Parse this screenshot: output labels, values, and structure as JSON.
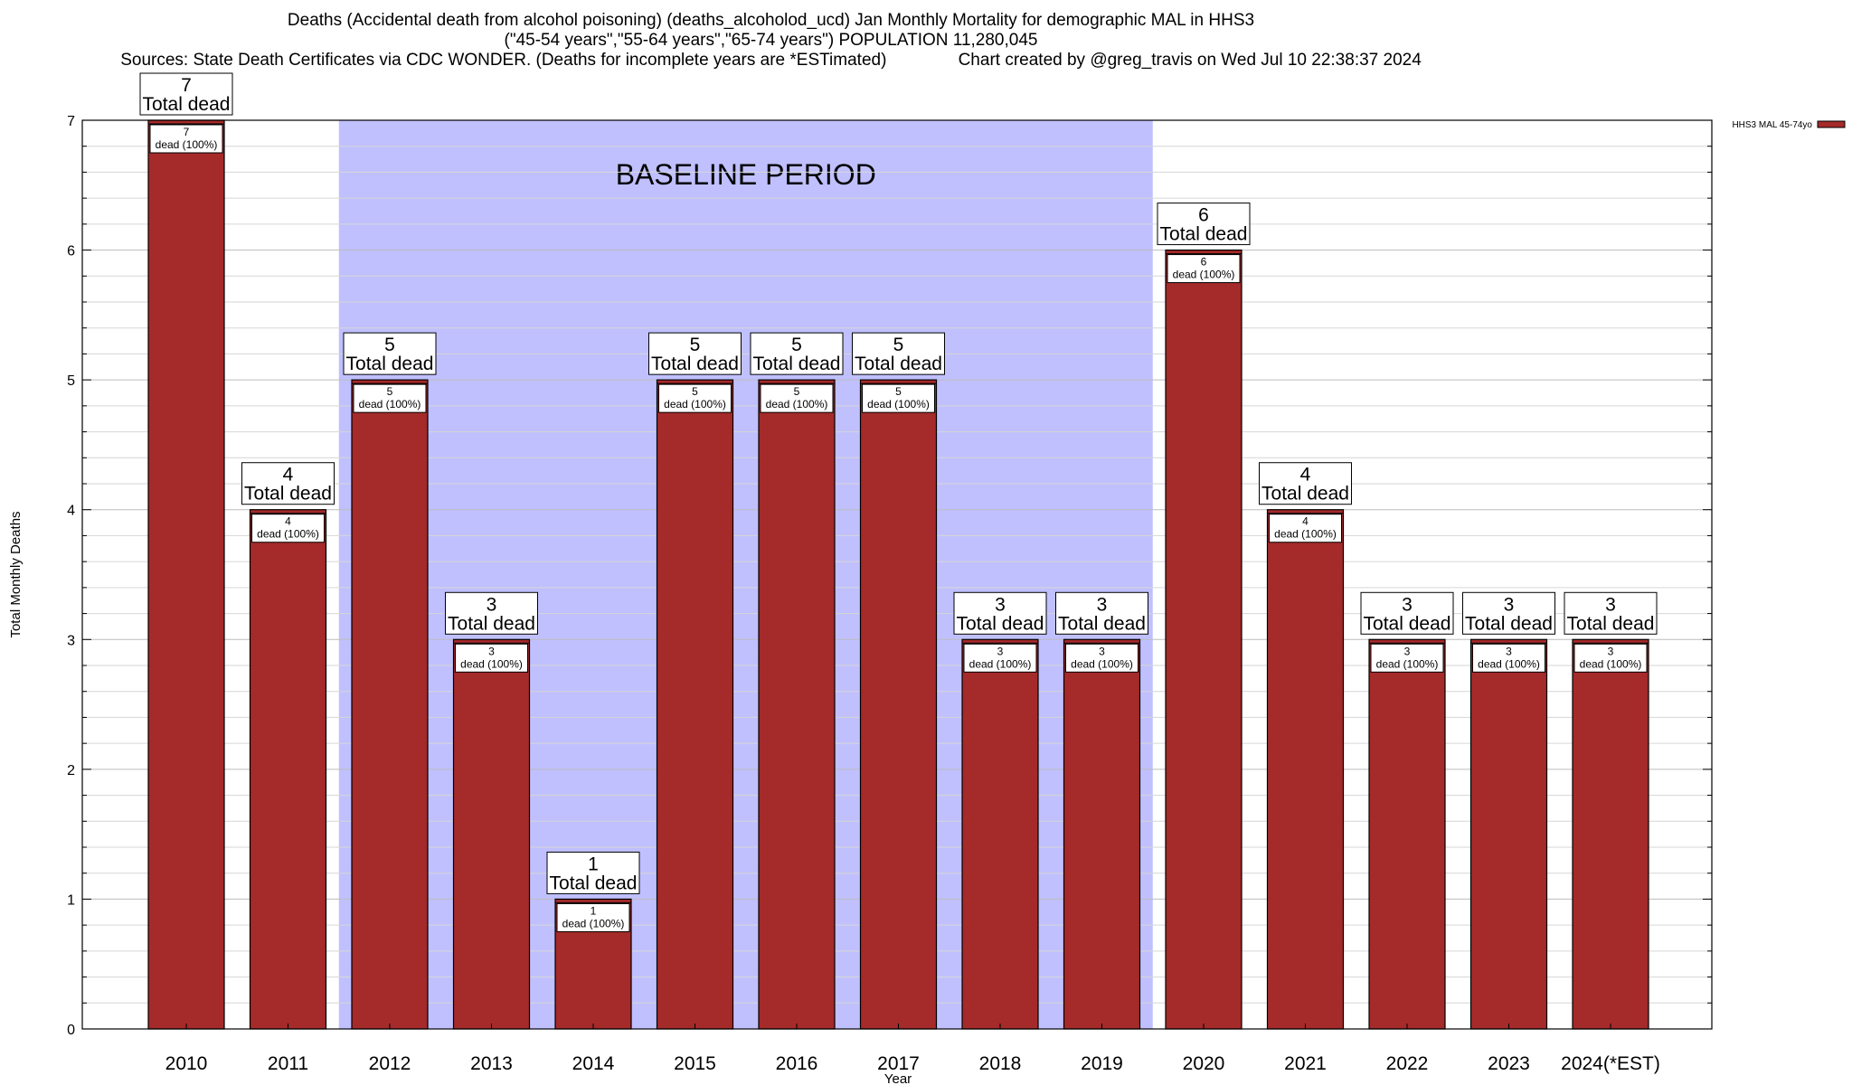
{
  "chart_data": {
    "type": "bar",
    "title": [
      "Deaths (Accidental death from alcohol poisoning) (deaths_alcoholod_ucd) Jan Monthly Mortality for demographic MAL in HHS3",
      "(\"45-54 years\",\"55-64 years\",\"65-74 years\") POPULATION 11,280,045",
      "Sources: State Death Certificates via CDC WONDER. (Deaths for incomplete years are *ESTimated)               Chart created by @greg_travis on Wed Jul 10 22:38:37 2024"
    ],
    "xlabel": "Year",
    "ylabel": "Total Monthly Deaths",
    "ylim": [
      0,
      7
    ],
    "yticks": [
      "0",
      "1",
      "2",
      "3",
      "4",
      "5",
      "6",
      "7"
    ],
    "categories": [
      "2010",
      "2011",
      "2012",
      "2013",
      "2014",
      "2015",
      "2016",
      "2017",
      "2018",
      "2019",
      "2020",
      "2021",
      "2022",
      "2023",
      "2024(*EST)"
    ],
    "series": [
      {
        "name": "HHS3 MAL 45-74yo",
        "values": [
          7,
          4,
          5,
          3,
          1,
          5,
          5,
          5,
          3,
          3,
          6,
          4,
          3,
          3,
          3
        ]
      }
    ],
    "total_labels": [
      "7",
      "4",
      "5",
      "3",
      "1",
      "5",
      "5",
      "5",
      "3",
      "3",
      "6",
      "4",
      "3",
      "3",
      "3"
    ],
    "total_caption": "Total dead",
    "segment_labels": [
      "7",
      "4",
      "5",
      "3",
      "1",
      "5",
      "5",
      "5",
      "3",
      "3",
      "6",
      "4",
      "3",
      "3",
      "3"
    ],
    "segment_caption": "dead (100%)",
    "baseline_period": {
      "label": "BASELINE PERIOD",
      "start": "2012",
      "end": "2019"
    },
    "legend": {
      "position": "top-right",
      "label": "HHS3 MAL 45-74yo"
    },
    "colors": {
      "bar": "#a52a2a",
      "bar_top": "#8b1a1a",
      "baseline": "#c0c0ff",
      "grid": "#c8c8c8"
    },
    "grid": true
  }
}
